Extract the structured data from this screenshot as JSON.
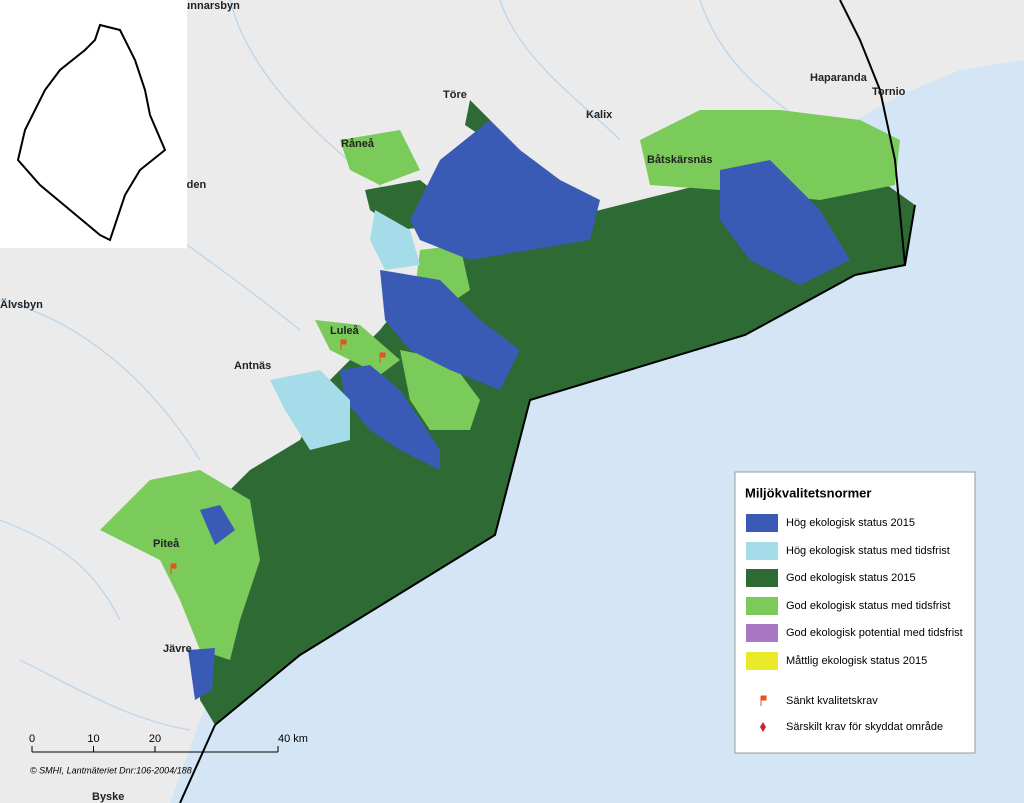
{
  "places": [
    "Gunnarsbyn",
    "Haparanda",
    "Tornio",
    "Töre",
    "Kalix",
    "Råneå",
    "Båtskärsnäs",
    "Boden",
    "Älvsbyn",
    "Luleå",
    "Antnäs",
    "Piteå",
    "Jävre",
    "Byske"
  ],
  "legend": {
    "title": "Miljökvalitetsnormer",
    "items": [
      {
        "label": "Hög ekologisk status 2015",
        "color": "#3a5bb5",
        "symbol": "swatch"
      },
      {
        "label": "Hög ekologisk status med tidsfrist",
        "color": "#a5dcea",
        "symbol": "swatch"
      },
      {
        "label": "God ekologisk status 2015",
        "color": "#2e6b34",
        "symbol": "swatch"
      },
      {
        "label": "God ekologisk status med tidsfrist",
        "color": "#7acb5a",
        "symbol": "swatch"
      },
      {
        "label": "God ekologisk potential med tidsfrist",
        "color": "#a877c4",
        "symbol": "swatch"
      },
      {
        "label": "Måttlig ekologisk status 2015",
        "color": "#eaea2a",
        "symbol": "swatch"
      },
      {
        "label": "Sänkt kvalitetskrav",
        "color": "#e8501e",
        "symbol": "flag"
      },
      {
        "label": "Särskilt krav för skyddat område",
        "color": "#c0282d",
        "symbol": "diamond"
      }
    ]
  },
  "scale_bar": {
    "ticks": [
      {
        "value": 0,
        "label": "0"
      },
      {
        "value": 10,
        "label": "10"
      },
      {
        "value": 20,
        "label": "20"
      },
      {
        "value": 40,
        "label": "40 km"
      }
    ]
  },
  "copyright": "© SMHI,  Lantmäteriet Dnr:106-2004/188"
}
